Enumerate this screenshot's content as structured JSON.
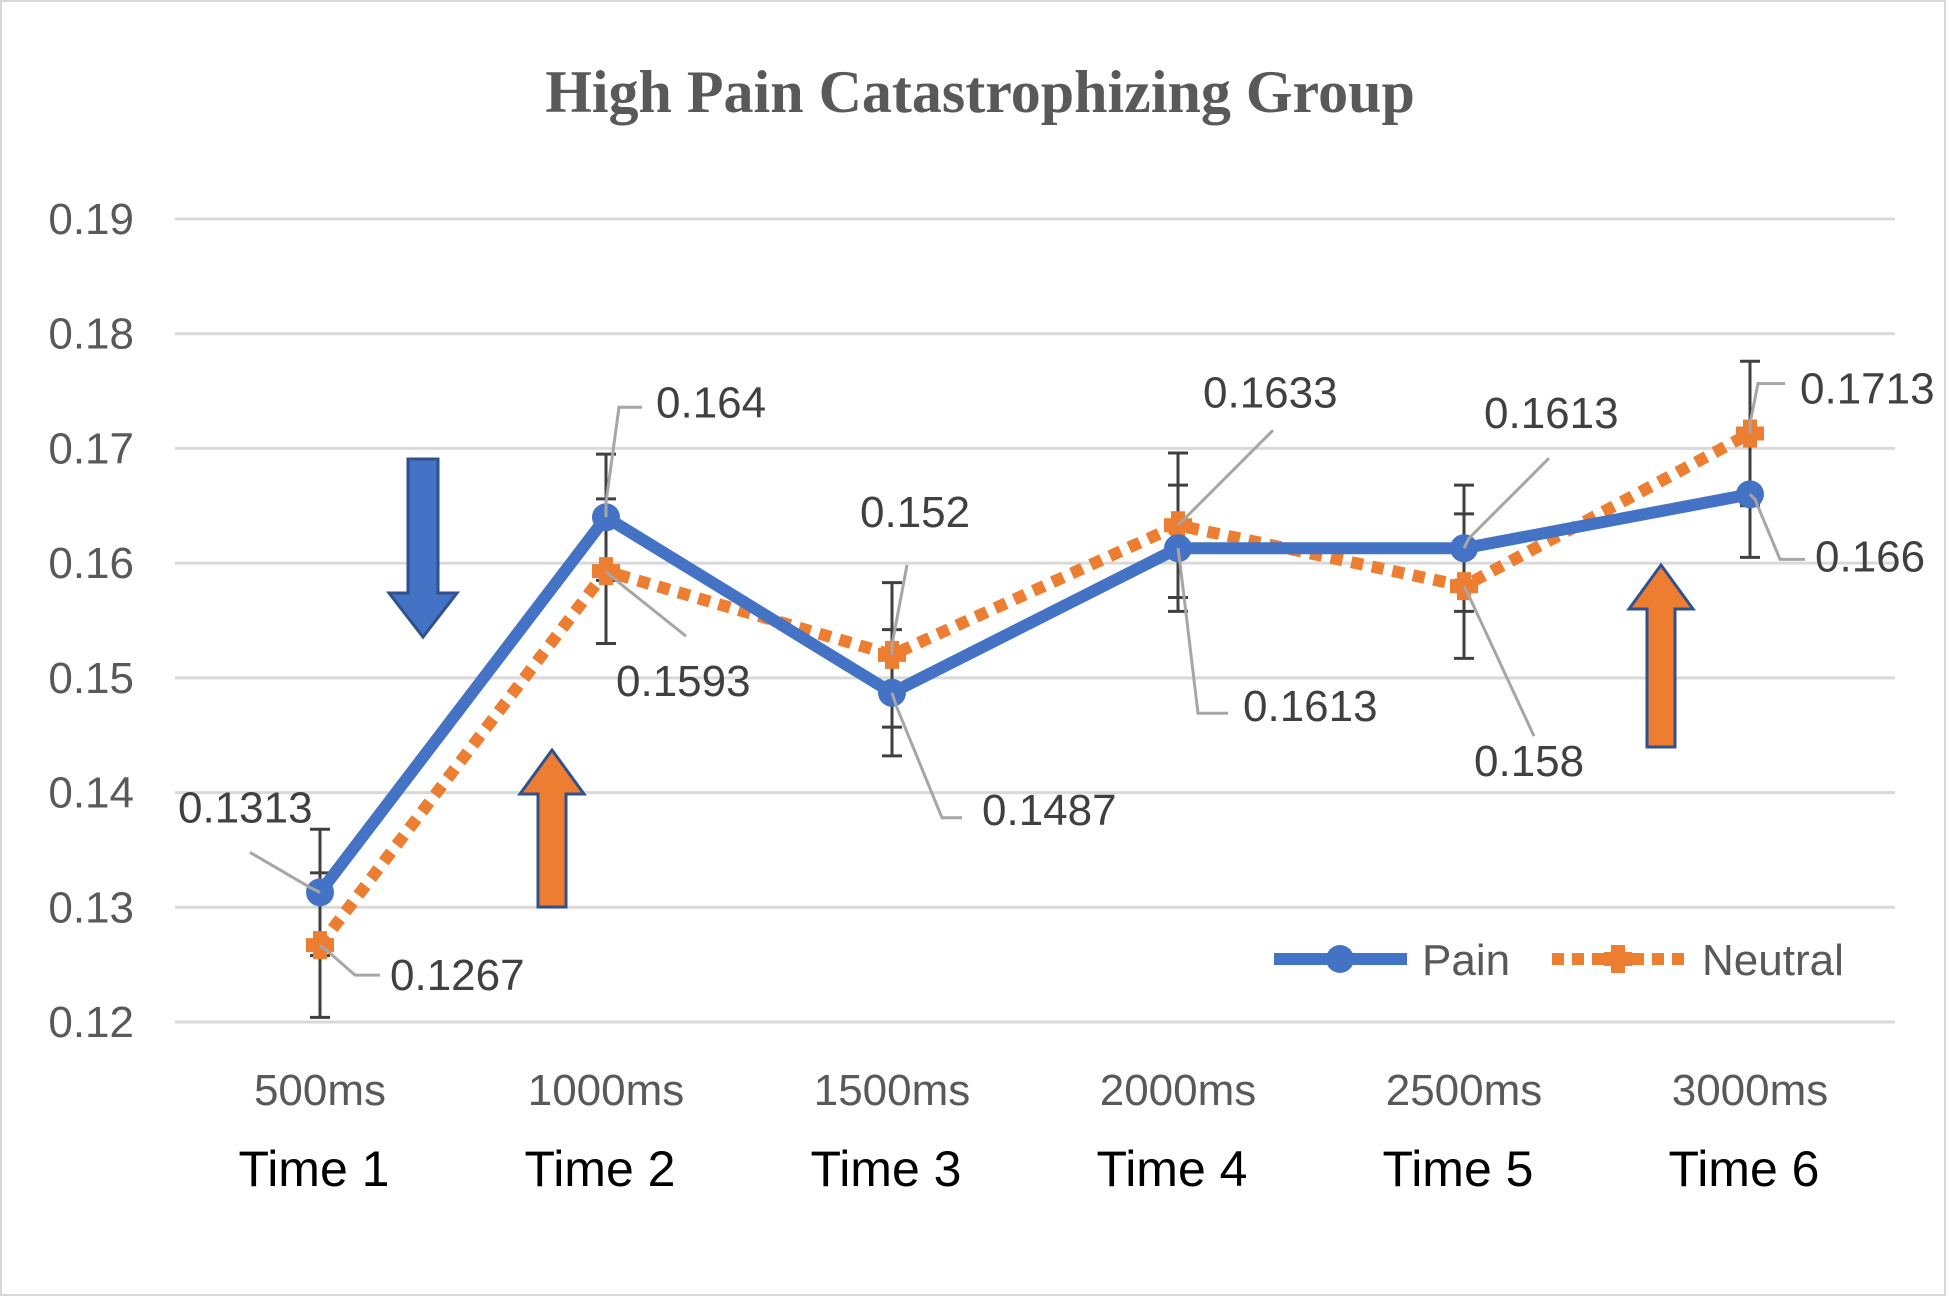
{
  "chart_data": {
    "type": "line",
    "title": "High Pain Catastrophizing Group",
    "categories": [
      "500ms",
      "1000ms",
      "1500ms",
      "2000ms",
      "2500ms",
      "3000ms"
    ],
    "category_groups": [
      "Time 1",
      "Time 2",
      "Time 3",
      "Time 4",
      "Time 5",
      "Time 6"
    ],
    "ylim": [
      0.12,
      0.19
    ],
    "yticks": [
      "0.12",
      "0.13",
      "0.14",
      "0.15",
      "0.16",
      "0.17",
      "0.18",
      "0.19"
    ],
    "ytick_values": [
      0.12,
      0.13,
      0.14,
      0.15,
      0.16,
      0.17,
      0.18,
      0.19
    ],
    "grid": true,
    "legend_position": "bottom-right",
    "series": [
      {
        "name": "Pain",
        "color": "#4472C4",
        "style": "solid",
        "marker": "circle",
        "values": [
          0.1313,
          0.164,
          0.1487,
          0.1613,
          0.1613,
          0.166
        ],
        "labels": [
          "0.1313",
          "0.164",
          "0.1487",
          "0.1613",
          "0.1613",
          "0.166"
        ],
        "error": [
          0.0055,
          0.0055,
          0.0055,
          0.0055,
          0.0055,
          0.0055
        ]
      },
      {
        "name": "Neutral",
        "color": "#ED7D31",
        "style": "dotted",
        "marker": "cross",
        "values": [
          0.1267,
          0.1593,
          0.152,
          0.1633,
          0.158,
          0.1713
        ],
        "labels": [
          "0.1267",
          "0.1593",
          "0.152",
          "0.1633",
          "0.158",
          "0.1713"
        ],
        "error": [
          0.0063,
          0.0063,
          0.0063,
          0.0063,
          0.0063,
          0.0063
        ]
      }
    ],
    "annotations": [
      {
        "type": "arrow",
        "direction": "down",
        "color": "#4472C4",
        "near": "between Time 1 and Time 2"
      },
      {
        "type": "arrow",
        "direction": "up",
        "color": "#ED7D31",
        "near": "between Time 1 and Time 2"
      },
      {
        "type": "arrow",
        "direction": "up",
        "color": "#ED7D31",
        "near": "between Time 5 and Time 6"
      }
    ]
  }
}
